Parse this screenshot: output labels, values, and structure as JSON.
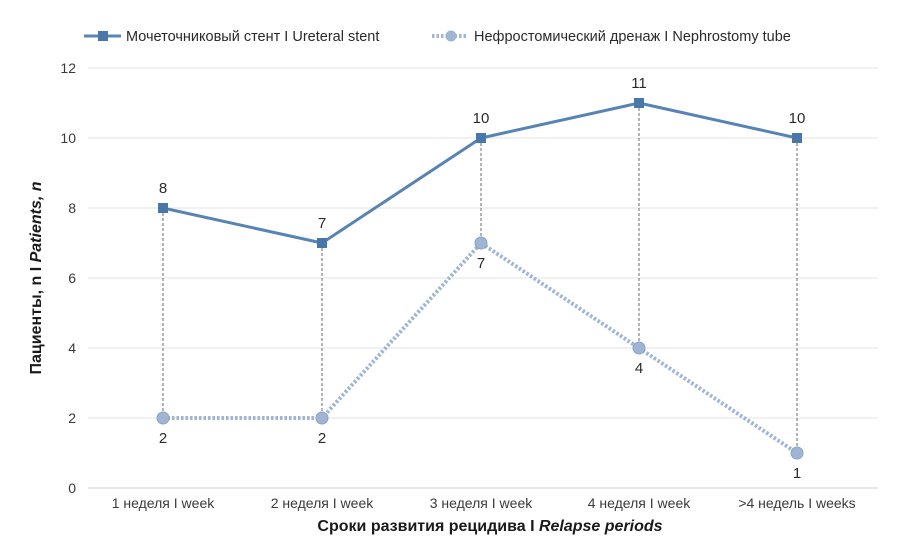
{
  "chart_data": {
    "type": "line",
    "categories": [
      "1 неделя I week",
      "2 неделя I week",
      "3 неделя I week",
      "4 неделя I week",
      ">4 недель I weeks"
    ],
    "series": [
      {
        "name": "Мочеточниковый стент I Ureteral stent",
        "values": [
          8,
          7,
          10,
          11,
          10
        ],
        "color": "#5784b5",
        "style": "solid",
        "marker": "square"
      },
      {
        "name": "Нефростомический дренаж I Nephrostomy tube",
        "values": [
          2,
          2,
          7,
          4,
          1
        ],
        "color": "#9fb5d3",
        "style": "dotted",
        "marker": "circle"
      }
    ],
    "ylim": [
      0,
      12
    ],
    "yticks": [
      "0",
      "2",
      "4",
      "6",
      "8",
      "10",
      "12"
    ],
    "xlabel": {
      "main": "Сроки развития рецидива I ",
      "italic": "Relapse periods"
    },
    "ylabel": {
      "main": "Пациенты, n I ",
      "italic": "Patients, n"
    },
    "data_labels": {
      "stent": [
        "8",
        "7",
        "10",
        "11",
        "10"
      ],
      "tube": [
        "2",
        "2",
        "7",
        "4",
        "1"
      ]
    },
    "grid": "horizontal",
    "drop_lines": true,
    "legend_position": "top"
  }
}
